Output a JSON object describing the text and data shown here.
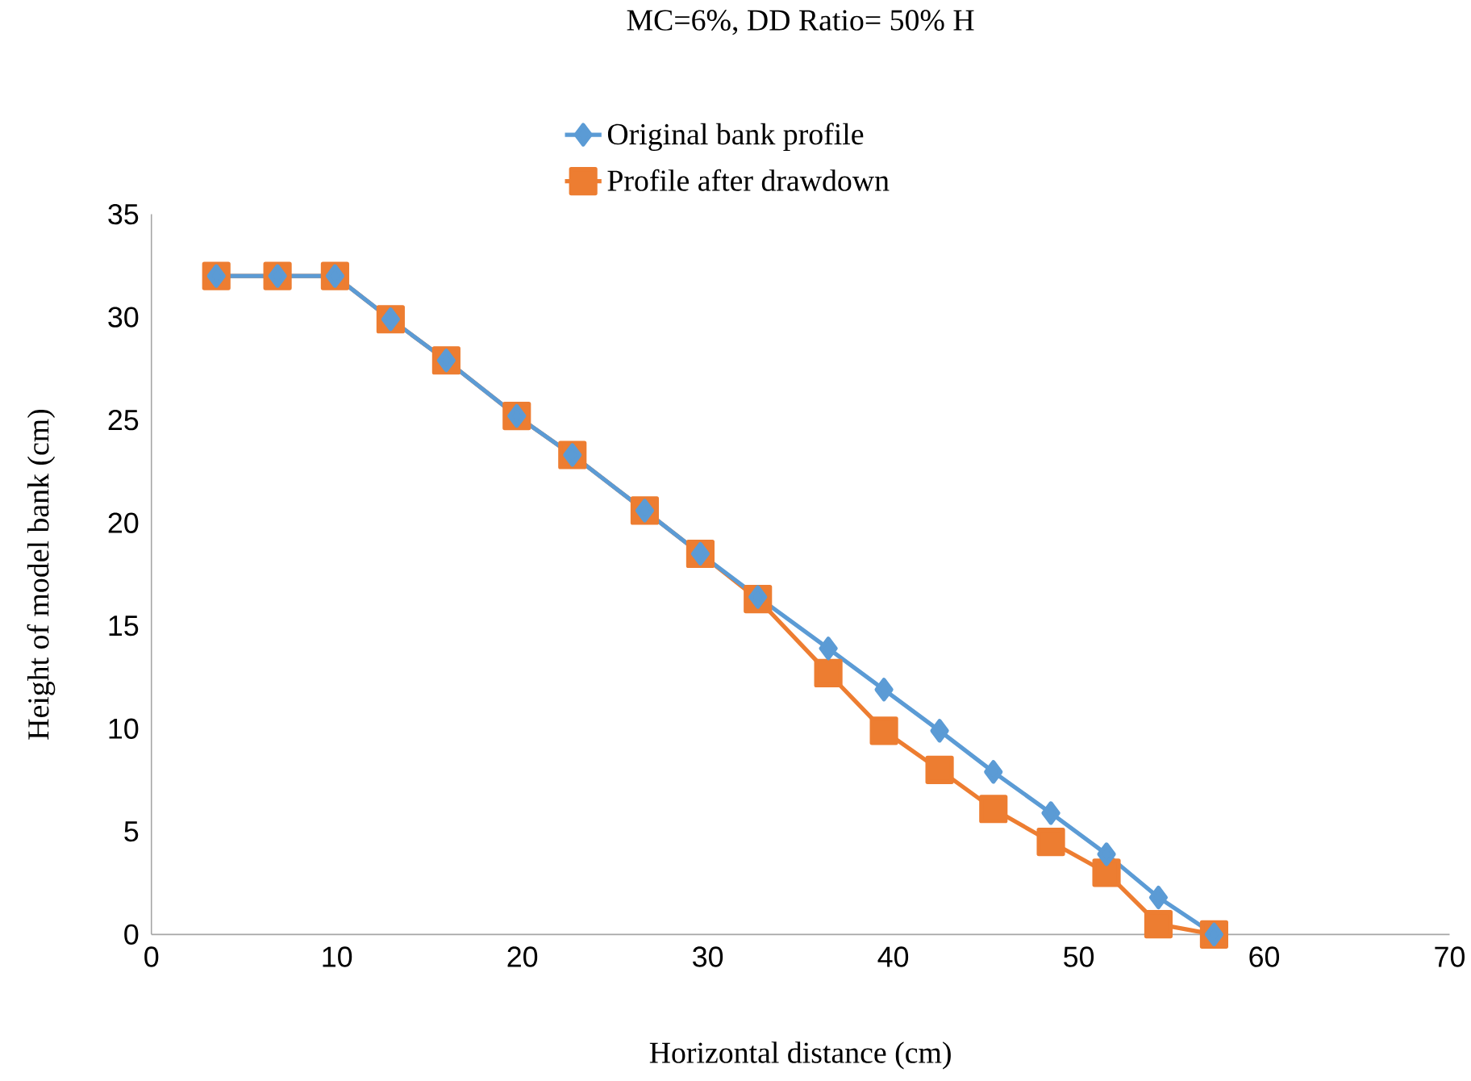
{
  "chart_data": {
    "type": "line",
    "title": "MC=6%, DD Ratio= 50% H",
    "xlabel": "Horizontal distance (cm)",
    "ylabel": "Height of model bank (cm)",
    "xlim": [
      0,
      70
    ],
    "xticks": [
      0,
      10,
      20,
      30,
      40,
      50,
      60,
      70
    ],
    "ylim": [
      0,
      35
    ],
    "yticks": [
      0,
      5,
      10,
      15,
      20,
      25,
      30,
      35
    ],
    "grid": false,
    "legend": "top",
    "line_style": "solid",
    "series": [
      {
        "name": "Original bank profile",
        "color": "#5b9bd5",
        "marker": "diamond",
        "x": [
          3.5,
          6.8,
          9.9,
          12.9,
          15.9,
          19.7,
          22.7,
          26.6,
          29.6,
          32.7,
          36.5,
          39.5,
          42.5,
          45.4,
          48.5,
          51.5,
          54.3,
          57.3
        ],
        "values": [
          32.0,
          32.0,
          32.0,
          29.9,
          27.9,
          25.2,
          23.3,
          20.6,
          18.5,
          16.4,
          13.9,
          11.9,
          9.9,
          7.9,
          5.9,
          3.9,
          1.8,
          0
        ]
      },
      {
        "name": "Profile after drawdown",
        "color": "#ed7d31",
        "marker": "square",
        "x": [
          3.5,
          6.8,
          9.9,
          12.9,
          15.9,
          19.7,
          22.7,
          26.6,
          29.6,
          32.7,
          36.5,
          39.5,
          42.5,
          45.4,
          48.5,
          51.5,
          54.3,
          57.3
        ],
        "values": [
          32.0,
          32.0,
          32.0,
          29.9,
          27.9,
          25.2,
          23.3,
          20.6,
          18.5,
          16.3,
          12.7,
          9.9,
          8.0,
          6.1,
          4.5,
          3.0,
          0.5,
          0
        ]
      }
    ]
  }
}
